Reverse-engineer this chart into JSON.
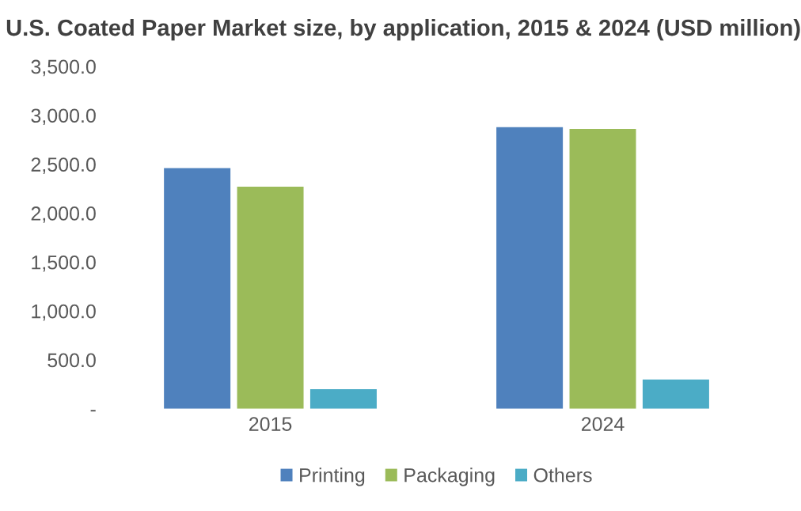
{
  "chart_data": {
    "type": "bar",
    "title": "U.S. Coated Paper Market size, by application, 2015 & 2024 (USD million)",
    "categories": [
      "2015",
      "2024"
    ],
    "series": [
      {
        "name": "Printing",
        "color": "#4f81bd",
        "values": [
          2460,
          2880
        ]
      },
      {
        "name": "Packaging",
        "color": "#9bbb59",
        "values": [
          2270,
          2860
        ]
      },
      {
        "name": "Others",
        "color": "#4bacc6",
        "values": [
          200,
          300
        ]
      }
    ],
    "ylim": [
      0,
      3500
    ],
    "yticks": [
      {
        "value": 0,
        "label": "-"
      },
      {
        "value": 500,
        "label": "500.0"
      },
      {
        "value": 1000,
        "label": "1,000.0"
      },
      {
        "value": 1500,
        "label": "1,500.0"
      },
      {
        "value": 2000,
        "label": "2,000.0"
      },
      {
        "value": 2500,
        "label": "2,500.0"
      },
      {
        "value": 3000,
        "label": "3,000.0"
      },
      {
        "value": 3500,
        "label": "3,500.0"
      }
    ],
    "grid": false,
    "legend": "bottom"
  }
}
